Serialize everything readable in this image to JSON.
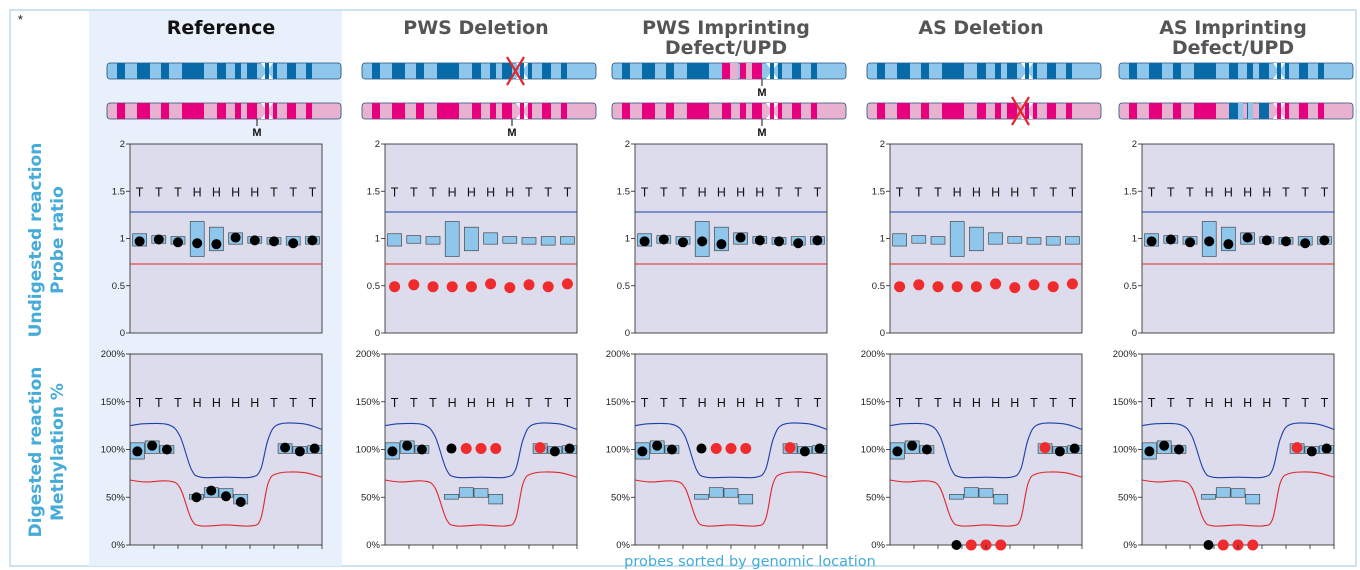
{
  "figure": {
    "corner_mark": "*",
    "xlabel": "probes sorted by genomic location",
    "row_labels": [
      [
        "Undigested reaction",
        "Probe ratio"
      ],
      [
        "Digested reaction",
        "Methylation %"
      ]
    ],
    "maternal_marker": "M",
    "colors": {
      "accent_text": "#45acd9",
      "highlight_bg": "#e8f1fb",
      "plot_bg": "#dcdcec",
      "paternal_dark": "#086aa6",
      "paternal_light": "#8ec6ec",
      "maternal_dark": "#e6007e",
      "maternal_light": "#e9b1d0",
      "upper_threshold": "#1f3fa8",
      "lower_threshold": "#e1262c",
      "measured_normal": "#000000",
      "measured_abnormal": "#ef2b2d",
      "deletion_cross": "#e1262c",
      "reference_boxes": "#8ec6ec"
    }
  },
  "chart_data": {
    "type": "scatter",
    "panels": [
      {
        "title": "Reference",
        "highlight": true,
        "paternal_chromosome": "normal",
        "maternal_chromosome": "normal",
        "m_marks": [
          "maternal"
        ],
        "undigested": {
          "point_color": "normal",
          "points": [
            0.97,
            0.99,
            0.96,
            0.95,
            0.94,
            1.01,
            0.98,
            0.97,
            0.95,
            0.98
          ]
        },
        "digested": {
          "point_color": "normal",
          "points": [
            98,
            104,
            100,
            null,
            50,
            57,
            51,
            45,
            null,
            null,
            102,
            98,
            101
          ]
        }
      },
      {
        "title": "PWS Deletion",
        "highlight": false,
        "paternal_chromosome": "deletion",
        "maternal_chromosome": "normal",
        "m_marks": [
          "maternal"
        ],
        "undigested": {
          "point_color": "abnormal",
          "points": [
            0.49,
            0.51,
            0.49,
            0.49,
            0.49,
            0.52,
            0.48,
            0.51,
            0.49,
            0.52
          ]
        },
        "digested": {
          "point_color": "mixed",
          "points": [
            98,
            104,
            100,
            null,
            101,
            101,
            101,
            101,
            null,
            null,
            102,
            98,
            101
          ],
          "abnormal_points": [
            4,
            5,
            6,
            7
          ]
        }
      },
      {
        "title": "PWS Imprinting Defect/UPD",
        "highlight": false,
        "paternal_chromosome": "maternal-pattern",
        "maternal_chromosome": "normal",
        "m_marks": [
          "paternal",
          "maternal"
        ],
        "undigested": {
          "point_color": "normal",
          "points": [
            0.97,
            0.99,
            0.96,
            0.97,
            0.94,
            1.01,
            0.98,
            0.97,
            0.95,
            0.98
          ]
        },
        "digested": {
          "point_color": "mixed",
          "points": [
            98,
            104,
            100,
            null,
            101,
            101,
            101,
            101,
            null,
            null,
            102,
            98,
            101
          ],
          "abnormal_points": [
            4,
            5,
            6,
            7
          ]
        }
      },
      {
        "title": "AS Deletion",
        "highlight": false,
        "paternal_chromosome": "normal",
        "maternal_chromosome": "deletion",
        "m_marks": [],
        "undigested": {
          "point_color": "abnormal",
          "points": [
            0.49,
            0.51,
            0.49,
            0.49,
            0.49,
            0.52,
            0.48,
            0.51,
            0.49,
            0.52
          ]
        },
        "digested": {
          "point_color": "mixed",
          "points": [
            98,
            104,
            100,
            null,
            0,
            0,
            0,
            0,
            null,
            null,
            102,
            98,
            101
          ],
          "abnormal_points": [
            4,
            5,
            6,
            7
          ]
        }
      },
      {
        "title": "AS Imprinting Defect/UPD",
        "highlight": false,
        "paternal_chromosome": "normal",
        "maternal_chromosome": "paternal-pattern",
        "m_marks": [],
        "undigested": {
          "point_color": "normal",
          "points": [
            0.97,
            0.99,
            0.96,
            0.97,
            0.94,
            1.01,
            0.98,
            0.97,
            0.95,
            0.98
          ]
        },
        "digested": {
          "point_color": "mixed",
          "points": [
            98,
            104,
            100,
            null,
            0,
            0,
            0,
            0,
            null,
            null,
            102,
            98,
            101
          ],
          "abnormal_points": [
            4,
            5,
            6,
            7
          ]
        }
      }
    ],
    "undigested_axis": {
      "ylim": [
        0,
        2
      ],
      "ticks": [
        "0",
        "0.5",
        "1",
        "1.5",
        "2"
      ],
      "tick_values": [
        0,
        0.5,
        1,
        1.5,
        2
      ],
      "probe_labels": [
        "T",
        "T",
        "T",
        "H",
        "H",
        "H",
        "H",
        "T",
        "T",
        "T"
      ],
      "upper_threshold": 1.28,
      "lower_threshold": 0.73,
      "reference_boxes": [
        [
          0.92,
          1.05
        ],
        [
          0.95,
          1.03
        ],
        [
          0.94,
          1.02
        ],
        [
          0.81,
          1.18
        ],
        [
          0.87,
          1.12
        ],
        [
          0.94,
          1.06
        ],
        [
          0.95,
          1.02
        ],
        [
          0.94,
          1.01
        ],
        [
          0.93,
          1.02
        ],
        [
          0.94,
          1.02
        ]
      ]
    },
    "digested_axis": {
      "ylim": [
        0,
        200
      ],
      "ticks": [
        "0%",
        "50%",
        "100%",
        "150%",
        "200%"
      ],
      "tick_values": [
        0,
        50,
        100,
        150,
        200
      ],
      "probe_labels": [
        "T",
        "T",
        "T",
        "H",
        "H",
        "H",
        "H",
        "T",
        "T",
        "T"
      ],
      "reference_boxes": [
        [
          90,
          107
        ],
        [
          96,
          109
        ],
        [
          96,
          104
        ],
        null,
        [
          48,
          53
        ],
        [
          50,
          60
        ],
        [
          50,
          59
        ],
        [
          43,
          53
        ],
        null,
        null,
        [
          96,
          106
        ],
        [
          96,
          103
        ],
        [
          96,
          104
        ]
      ],
      "upper_threshold_curve": [
        [
          0,
          125
        ],
        [
          0.08,
          127
        ],
        [
          0.2,
          126
        ],
        [
          0.26,
          114
        ],
        [
          0.32,
          79
        ],
        [
          0.37,
          71
        ],
        [
          0.5,
          71
        ],
        [
          0.63,
          71
        ],
        [
          0.68,
          79
        ],
        [
          0.72,
          111
        ],
        [
          0.77,
          126
        ],
        [
          0.9,
          127
        ],
        [
          1,
          121
        ]
      ],
      "lower_threshold_curve": [
        [
          0,
          68
        ],
        [
          0.08,
          66
        ],
        [
          0.2,
          67
        ],
        [
          0.26,
          60
        ],
        [
          0.32,
          27
        ],
        [
          0.37,
          20
        ],
        [
          0.5,
          21
        ],
        [
          0.63,
          20
        ],
        [
          0.68,
          27
        ],
        [
          0.72,
          65
        ],
        [
          0.77,
          75
        ],
        [
          0.9,
          76
        ],
        [
          1,
          71
        ]
      ]
    }
  }
}
